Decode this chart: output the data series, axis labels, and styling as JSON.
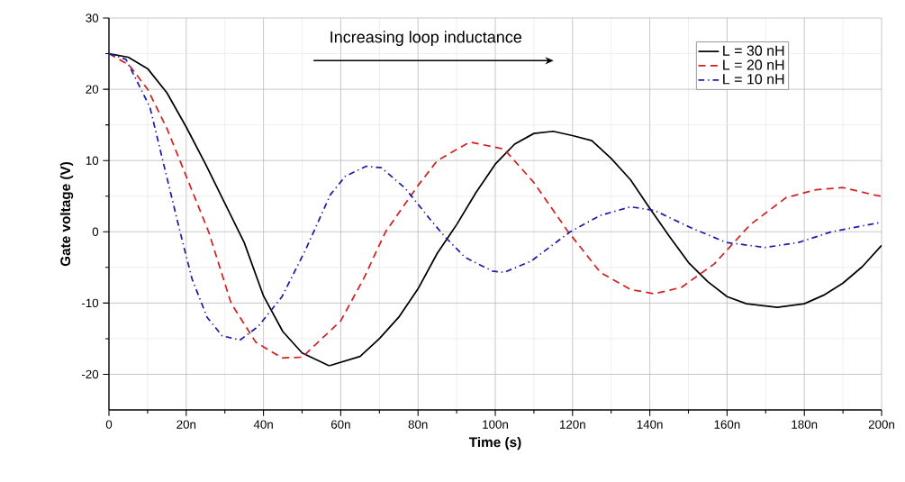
{
  "chart_data": {
    "type": "line",
    "xlabel": "Time (s)",
    "ylabel": "Gate voltage (V)",
    "annotations": [
      "Increasing loop inductance"
    ],
    "xlim": [
      0,
      200
    ],
    "ylim": [
      -25,
      30
    ],
    "xticks": [
      0,
      {
        "value": 20,
        "label": "20n"
      },
      {
        "value": 40,
        "label": "40n"
      },
      {
        "value": 60,
        "label": "60n"
      },
      {
        "value": 80,
        "label": "80n"
      },
      {
        "value": 100,
        "label": "100n"
      },
      {
        "value": 120,
        "label": "120n"
      },
      {
        "value": 140,
        "label": "140n"
      },
      {
        "value": 160,
        "label": "160n"
      },
      {
        "value": 180,
        "label": "180n"
      },
      {
        "value": 200,
        "label": "200n"
      }
    ],
    "yticks": [
      -20,
      -10,
      0,
      10,
      20,
      30
    ],
    "grid": true,
    "legend": "top right",
    "marker": "none",
    "series": [
      {
        "name": "L = 30 nH",
        "color": "#000000",
        "line_style": "solid",
        "x": [
          0,
          5,
          10,
          15,
          20,
          25,
          30,
          35,
          40,
          45,
          50,
          57,
          65,
          70,
          75,
          80,
          85,
          90,
          95,
          100,
          105,
          110,
          115,
          120,
          125,
          130,
          135,
          140,
          145,
          150,
          155,
          160,
          165,
          173,
          180,
          185,
          190,
          195,
          200
        ],
        "values": [
          25,
          24.5,
          22.9,
          19.5,
          14.7,
          9.5,
          4,
          -1.5,
          -9,
          -14,
          -17,
          -18.8,
          -17.5,
          -15,
          -12,
          -8,
          -3,
          1,
          5.5,
          9.5,
          12.3,
          13.8,
          14.1,
          13.5,
          12.8,
          10.3,
          7.3,
          3.3,
          -0.6,
          -4.3,
          -7,
          -9.1,
          -10.1,
          -10.6,
          -10.1,
          -8.9,
          -7.2,
          -4.9,
          -1.9
        ]
      },
      {
        "name": "L = 20 nH",
        "color": "#d42020",
        "line_style": "dashed",
        "x": [
          0,
          5.2,
          10,
          15,
          20,
          25.8,
          31.6,
          38,
          44.8,
          50,
          60,
          66,
          71.6,
          80,
          85,
          93.4,
          102.3,
          110,
          118.6,
          127.2,
          135,
          141.2,
          148.2,
          156.7,
          166,
          175.3,
          183,
          190,
          198.6,
          200
        ],
        "values": [
          25,
          23.4,
          20,
          14.5,
          7.8,
          0,
          -10,
          -15.5,
          -17.7,
          -17.6,
          -12.5,
          -6.5,
          0,
          6.5,
          10,
          12.6,
          11.6,
          6.9,
          0.2,
          -5.7,
          -8.1,
          -8.7,
          -7.8,
          -4.5,
          1,
          4.8,
          5.9,
          6.2,
          5.1,
          5
        ]
      },
      {
        "name": "L = 10 nH",
        "color": "#1c1ca8",
        "line_style": "dashdot",
        "x": [
          0,
          4.4,
          10.6,
          13.8,
          18.4,
          21.5,
          25.4,
          29.3,
          33.9,
          38.6,
          44.8,
          51,
          57.3,
          61.2,
          66.6,
          70.5,
          76.7,
          82.9,
          86.8,
          92.2,
          99.2,
          102.3,
          109.3,
          119.4,
          127.2,
          135,
          141.2,
          150.5,
          159.8,
          169.9,
          178.5,
          187,
          198.6,
          200
        ],
        "values": [
          25,
          24.2,
          17.5,
          10.3,
          0,
          -6.6,
          -12,
          -14.6,
          -15.2,
          -13.3,
          -9.1,
          -2.4,
          5.2,
          7.8,
          9.2,
          9,
          6.1,
          1.9,
          -0.6,
          -3.6,
          -5.5,
          -5.7,
          -4.1,
          0,
          2.3,
          3.5,
          3,
          0.6,
          -1.5,
          -2.2,
          -1.5,
          0,
          1.2,
          1.3
        ]
      }
    ]
  }
}
